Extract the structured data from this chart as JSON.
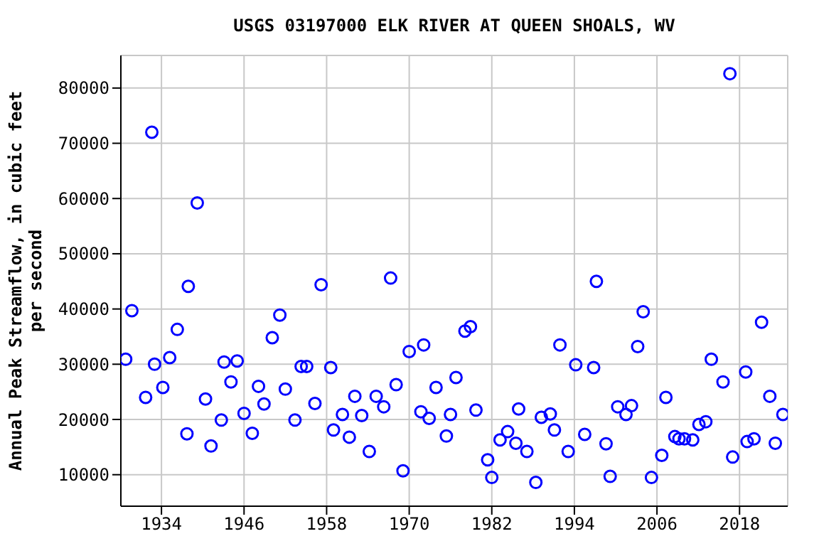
{
  "chart_data": {
    "type": "scatter",
    "title": "USGS 03197000 ELK RIVER AT QUEEN SHOALS, WV",
    "ylabel": "Annual Peak Streamflow, in cubic feet per second",
    "x": [
      1928.8,
      1929.7,
      1931.7,
      1932.6,
      1933.0,
      1934.2,
      1935.2,
      1936.3,
      1937.7,
      1937.9,
      1939.2,
      1940.4,
      1941.2,
      1942.7,
      1943.1,
      1944.1,
      1945.0,
      1946.0,
      1947.2,
      1948.1,
      1948.9,
      1950.1,
      1951.2,
      1952.0,
      1953.4,
      1954.3,
      1955.1,
      1956.3,
      1957.2,
      1958.6,
      1959.0,
      1960.3,
      1961.3,
      1962.1,
      1963.1,
      1964.2,
      1965.2,
      1966.3,
      1967.3,
      1968.1,
      1969.1,
      1970.0,
      1971.7,
      1972.1,
      1972.9,
      1973.9,
      1975.4,
      1976.0,
      1976.8,
      1978.1,
      1978.9,
      1979.7,
      1981.4,
      1982.0,
      1983.2,
      1984.3,
      1985.5,
      1985.9,
      1987.1,
      1988.4,
      1989.2,
      1990.5,
      1991.1,
      1991.9,
      1993.1,
      1994.2,
      1995.5,
      1996.8,
      1997.2,
      1998.6,
      1999.2,
      2000.3,
      2001.5,
      2002.3,
      2003.2,
      2004.0,
      2005.2,
      2006.7,
      2007.3,
      2008.6,
      2009.2,
      2010.0,
      2011.2,
      2012.1,
      2013.1,
      2013.9,
      2015.6,
      2016.6,
      2017.0,
      2018.9,
      2019.1,
      2020.1,
      2021.2,
      2022.4,
      2023.2,
      2024.3
    ],
    "series": [
      {
        "color": "#0000ff",
        "values": [
          30900,
          39700,
          24000,
          72000,
          30000,
          25800,
          31200,
          36300,
          17400,
          44100,
          59200,
          23700,
          15200,
          19900,
          30400,
          26800,
          30600,
          21100,
          17500,
          26000,
          22800,
          34800,
          38900,
          25500,
          19900,
          29600,
          29600,
          22900,
          44400,
          29400,
          18100,
          20900,
          16800,
          24200,
          20700,
          14200,
          24200,
          22300,
          45600,
          26300,
          10700,
          32300,
          21400,
          33500,
          20200,
          25800,
          17000,
          20900,
          27600,
          36000,
          36800,
          21700,
          12700,
          9500,
          16300,
          17800,
          15700,
          21900,
          14200,
          8600,
          20400,
          21000,
          18100,
          33500,
          14200,
          29900,
          17300,
          29400,
          45000,
          15600,
          9700,
          22300,
          20900,
          22500,
          33200,
          39500,
          9500,
          13500,
          24000,
          16900,
          16500,
          16500,
          16300,
          19100,
          19600,
          30900,
          26800,
          82600,
          13200,
          28600,
          16000,
          16500,
          37600,
          24200,
          15700,
          20900
        ]
      }
    ],
    "xlim": [
      1928.1,
      2025.0
    ],
    "xticks": [
      1934,
      1946,
      1958,
      1970,
      1982,
      1994,
      2006,
      2018
    ],
    "ylim": [
      4300,
      85900
    ],
    "yticks": [
      10000,
      20000,
      30000,
      40000,
      50000,
      60000,
      70000,
      80000
    ],
    "grid": true,
    "marker": "circle"
  }
}
